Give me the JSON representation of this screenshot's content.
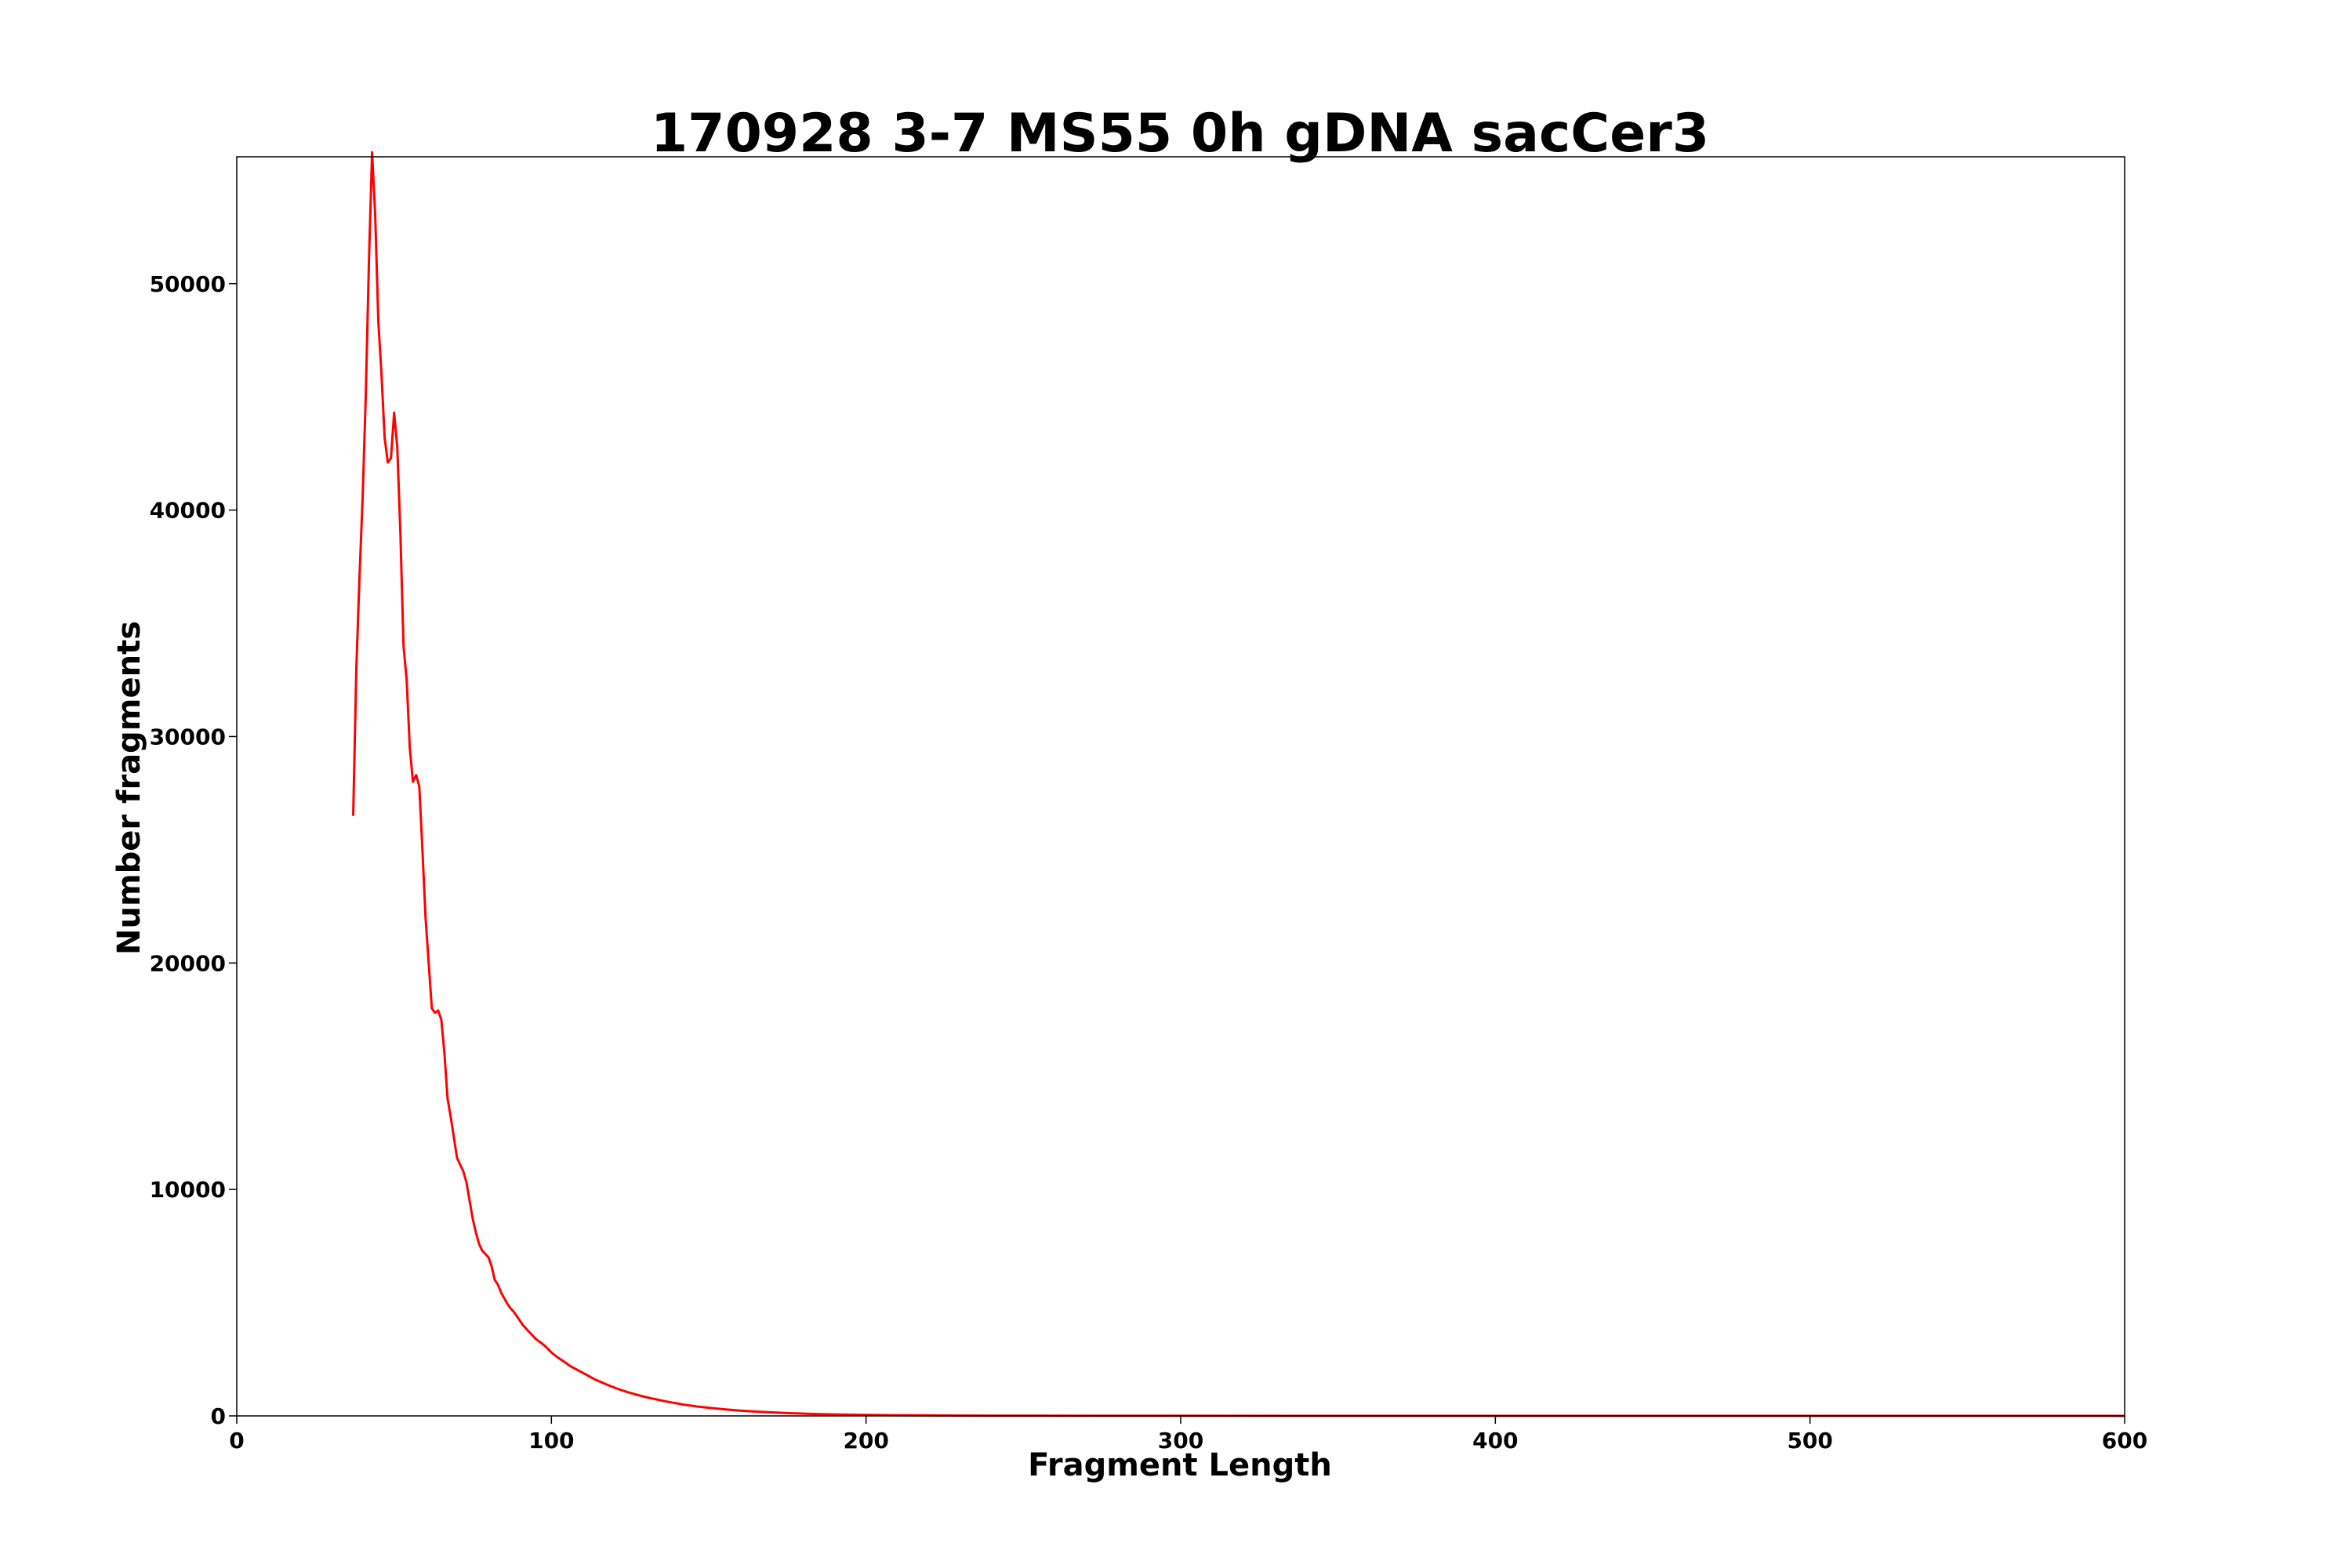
{
  "chart_data": {
    "type": "line",
    "title": "170928 3-7 MS55 0h gDNA sacCer3",
    "xlabel": "Fragment Length",
    "ylabel": "Number fragments",
    "xlim": [
      0,
      600
    ],
    "ylim": [
      0,
      55600
    ],
    "x_ticks": [
      0,
      100,
      200,
      300,
      400,
      500,
      600
    ],
    "x_tick_labels": [
      "0",
      "100",
      "200",
      "300",
      "400",
      "500",
      "600"
    ],
    "y_ticks": [
      0,
      10000,
      20000,
      30000,
      40000,
      50000
    ],
    "y_tick_labels": [
      "0",
      "10000",
      "20000",
      "30000",
      "40000",
      "50000"
    ],
    "grid": false,
    "legend": "none",
    "series": [
      {
        "color": "#ff0000",
        "x": [
          37,
          38,
          39,
          40,
          41,
          42,
          43,
          44,
          45,
          46,
          47,
          48,
          49,
          50,
          51,
          52,
          53,
          54,
          55,
          56,
          57,
          58,
          59,
          60,
          61,
          62,
          63,
          64,
          65,
          66,
          67,
          68,
          69,
          70,
          71,
          72,
          73,
          74,
          75,
          76,
          77,
          78,
          79,
          80,
          81,
          82,
          83,
          84,
          85,
          86,
          87,
          88,
          89,
          90,
          91,
          92,
          93,
          94,
          95,
          96,
          97,
          98,
          99,
          100,
          102,
          104,
          106,
          108,
          110,
          112,
          114,
          116,
          118,
          120,
          122,
          124,
          126,
          128,
          130,
          132,
          134,
          136,
          138,
          140,
          142,
          144,
          146,
          148,
          150,
          155,
          160,
          165,
          170,
          175,
          180,
          185,
          190,
          200,
          210,
          220,
          230,
          240,
          250,
          275,
          300,
          350,
          400,
          450,
          500,
          550,
          600
        ],
        "y": [
          26500,
          33000,
          37000,
          40500,
          45000,
          51000,
          55800,
          53000,
          48300,
          46000,
          43200,
          42100,
          42300,
          44300,
          42800,
          39000,
          34000,
          32500,
          29500,
          28000,
          28300,
          27800,
          25000,
          22000,
          20000,
          18000,
          17800,
          17900,
          17500,
          16000,
          14000,
          13200,
          12300,
          11400,
          11100,
          10800,
          10300,
          9500,
          8700,
          8100,
          7600,
          7300,
          7150,
          7000,
          6600,
          6000,
          5800,
          5450,
          5200,
          4950,
          4750,
          4600,
          4400,
          4200,
          4000,
          3850,
          3700,
          3550,
          3400,
          3300,
          3200,
          3080,
          2950,
          2800,
          2580,
          2400,
          2200,
          2050,
          1900,
          1750,
          1600,
          1480,
          1360,
          1250,
          1150,
          1060,
          980,
          900,
          830,
          770,
          710,
          650,
          600,
          550,
          500,
          460,
          420,
          390,
          360,
          290,
          235,
          190,
          155,
          125,
          100,
          80,
          65,
          45,
          30,
          20,
          14,
          10,
          7,
          4,
          2,
          1,
          0,
          0,
          0,
          0,
          0
        ]
      }
    ]
  }
}
